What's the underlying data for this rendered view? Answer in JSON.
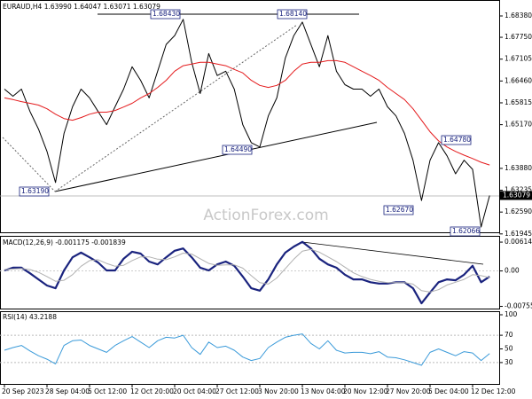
{
  "chart_data": [
    {
      "type": "line",
      "title": "EURAUD,H4  1.63990 1.64047 1.63071 1.63079",
      "ylim": [
        1.6194,
        1.6872
      ],
      "yticks": [
        {
          "value": 1.6838,
          "label": "1.68380"
        },
        {
          "value": 1.6775,
          "label": "1.67750"
        },
        1.67105,
        {
          "value": 1.6646,
          "label": "1.66460"
        },
        1.65815,
        {
          "value": 1.6517,
          "label": "1.65170"
        },
        {
          "value": 1.6388,
          "label": "1.63880"
        },
        1.63235,
        {
          "value": 1.6259,
          "label": "1.62590"
        },
        1.61945
      ],
      "last_price": 1.63079,
      "watermark": "ActionForex.com",
      "annotations": [
        "1.68430",
        "1.68140",
        "1.63190",
        "1.64490",
        "1.62670",
        "1.64780",
        "1.62066"
      ],
      "series": [
        {
          "name": "EURAUD",
          "color": "#000000",
          "values": [
            1.6622,
            1.6601,
            1.6622,
            1.6556,
            1.6504,
            1.6438,
            1.6346,
            1.6491,
            1.657,
            1.6622,
            1.6596,
            1.6556,
            1.6517,
            1.657,
            1.6622,
            1.6688,
            1.6648,
            1.6596,
            1.6675,
            1.6754,
            1.678,
            1.6828,
            1.6701,
            1.6609,
            1.6727,
            1.6662,
            1.6675,
            1.6622,
            1.6517,
            1.6464,
            1.6451,
            1.6543,
            1.6596,
            1.6714,
            1.678,
            1.682,
            1.6754,
            1.6688,
            1.678,
            1.6675,
            1.6635,
            1.6622,
            1.6622,
            1.6601,
            1.6622,
            1.657,
            1.6543,
            1.6491,
            1.6412,
            1.6293,
            1.6412,
            1.6464,
            1.6425,
            1.6372,
            1.6412,
            1.6385,
            1.6215,
            1.63079
          ]
        },
        {
          "name": "MA",
          "color": "#e41a1c",
          "values": [
            1.6596,
            1.6591,
            1.6585,
            1.658,
            1.6575,
            1.6564,
            1.6548,
            1.6535,
            1.653,
            1.6538,
            1.6548,
            1.6554,
            1.6554,
            1.6559,
            1.6569,
            1.658,
            1.6596,
            1.6609,
            1.6627,
            1.6648,
            1.6675,
            1.6691,
            1.6696,
            1.6701,
            1.6701,
            1.6696,
            1.6691,
            1.668,
            1.667,
            1.6648,
            1.6633,
            1.6627,
            1.6633,
            1.6648,
            1.6675,
            1.6696,
            1.6701,
            1.6701,
            1.6706,
            1.6706,
            1.6701,
            1.6688,
            1.6675,
            1.6662,
            1.6648,
            1.6627,
            1.6609,
            1.6591,
            1.6564,
            1.653,
            1.6496,
            1.6469,
            1.6451,
            1.6438,
            1.6427,
            1.6417,
            1.6406,
            1.6398
          ]
        }
      ]
    },
    {
      "type": "line",
      "title": "MACD(12,26,9) -0.001175 -0.001839",
      "ylim": [
        -0.0084,
        0.0071
      ],
      "yticks": [
        0.006144,
        {
          "value": 0,
          "label": "0.00"
        },
        -0.007555
      ],
      "series": [
        {
          "name": "MACD",
          "color": "#1a237e",
          "values": [
            0.0001,
            0.0007,
            0.0007,
            -0.0005,
            -0.0018,
            -0.0031,
            -0.0037,
            0.0001,
            0.0029,
            0.0039,
            0.0029,
            0.0018,
            0.0001,
            0.0001,
            0.0026,
            0.0041,
            0.0037,
            0.002,
            0.0014,
            0.0029,
            0.0043,
            0.0048,
            0.0029,
            0.0007,
            0.0001,
            0.0014,
            0.002,
            0.0011,
            -0.0012,
            -0.0037,
            -0.0042,
            -0.0018,
            0.0014,
            0.0039,
            0.0052,
            0.0062,
            0.0048,
            0.0026,
            0.0014,
            0.0007,
            -0.0008,
            -0.0018,
            -0.0018,
            -0.0024,
            -0.0027,
            -0.0027,
            -0.0024,
            -0.0024,
            -0.0037,
            -0.0069,
            -0.0046,
            -0.0024,
            -0.0018,
            -0.002,
            -0.0008,
            0.0011,
            -0.0024,
            -0.0012
          ]
        },
        {
          "name": "Signal",
          "color": "#b0b0b0",
          "values": [
            0.0003,
            0.0004,
            0.0005,
            0.0003,
            -0.0003,
            -0.0012,
            -0.0022,
            -0.002,
            -0.0008,
            0.001,
            0.0022,
            0.0024,
            0.0016,
            0.001,
            0.0012,
            0.0022,
            0.003,
            0.003,
            0.0025,
            0.0024,
            0.003,
            0.0038,
            0.0036,
            0.0026,
            0.0016,
            0.0012,
            0.0013,
            0.0013,
            0.0006,
            -0.001,
            -0.0025,
            -0.0028,
            -0.0015,
            0.0005,
            0.0025,
            0.0042,
            0.0046,
            0.004,
            0.003,
            0.002,
            0.0008,
            -0.0004,
            -0.0012,
            -0.0018,
            -0.0022,
            -0.0025,
            -0.0025,
            -0.0025,
            -0.0028,
            -0.0042,
            -0.0045,
            -0.004,
            -0.003,
            -0.0024,
            -0.0018,
            -0.0008,
            -0.001,
            -0.0014
          ]
        }
      ]
    },
    {
      "type": "line",
      "title": "RSI(14) 43.2188",
      "ylim": [
        0,
        100
      ],
      "yticks": [
        100,
        70,
        50,
        30
      ],
      "levels": [
        70,
        30
      ],
      "categories": [
        "20 Sep 2023",
        null,
        null,
        null,
        null,
        "28 Sep 04:00",
        null,
        null,
        null,
        null,
        "5 Oct 12:00",
        null,
        null,
        null,
        null,
        "12 Oct 20:00",
        null,
        null,
        null,
        null,
        "20 Oct 04:00",
        null,
        null,
        null,
        null,
        "27 Oct 12:00",
        null,
        null,
        null,
        null,
        "3 Nov 20:00",
        null,
        null,
        null,
        null,
        "13 Nov 04:00",
        null,
        null,
        null,
        null,
        "20 Nov 12:00",
        null,
        null,
        null,
        null,
        "27 Nov 20:00",
        null,
        null,
        null,
        null,
        "5 Dec 04:00",
        null,
        null,
        null,
        null,
        "12 Dec 12:00",
        null,
        null
      ],
      "series": [
        {
          "name": "RSI",
          "color": "#3a9ad9",
          "values": [
            48,
            52,
            55,
            47,
            40,
            35,
            28,
            55,
            62,
            63,
            55,
            50,
            45,
            55,
            62,
            68,
            60,
            52,
            62,
            67,
            66,
            70,
            52,
            42,
            60,
            52,
            54,
            48,
            38,
            33,
            36,
            52,
            60,
            67,
            70,
            72,
            58,
            50,
            62,
            48,
            44,
            45,
            45,
            43,
            46,
            38,
            37,
            34,
            30,
            26,
            45,
            50,
            45,
            40,
            46,
            44,
            33,
            43.2188
          ]
        }
      ]
    }
  ]
}
